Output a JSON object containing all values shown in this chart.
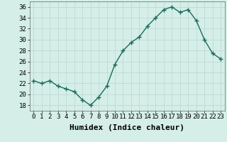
{
  "x": [
    0,
    1,
    2,
    3,
    4,
    5,
    6,
    7,
    8,
    9,
    10,
    11,
    12,
    13,
    14,
    15,
    16,
    17,
    18,
    19,
    20,
    21,
    22,
    23
  ],
  "y": [
    22.5,
    22.0,
    22.5,
    21.5,
    21.0,
    20.5,
    19.0,
    18.0,
    19.5,
    21.5,
    25.5,
    28.0,
    29.5,
    30.5,
    32.5,
    34.0,
    35.5,
    36.0,
    35.0,
    35.5,
    33.5,
    30.0,
    27.5,
    26.5
  ],
  "line_color": "#1a6b5a",
  "marker": "+",
  "marker_size": 4,
  "marker_lw": 1.0,
  "line_width": 1.0,
  "bg_color": "#d5eee8",
  "grid_color": "#b8d8cf",
  "xlabel": "Humidex (Indice chaleur)",
  "ylabel_ticks": [
    18,
    20,
    22,
    24,
    26,
    28,
    30,
    32,
    34,
    36
  ],
  "xtick_labels": [
    "0",
    "1",
    "2",
    "3",
    "4",
    "5",
    "6",
    "7",
    "8",
    "9",
    "10",
    "11",
    "12",
    "13",
    "14",
    "15",
    "16",
    "17",
    "18",
    "19",
    "20",
    "21",
    "22",
    "23"
  ],
  "ylim": [
    17,
    37
  ],
  "xlim": [
    -0.5,
    23.5
  ],
  "tick_fontsize": 6.5,
  "xlabel_fontsize": 8
}
